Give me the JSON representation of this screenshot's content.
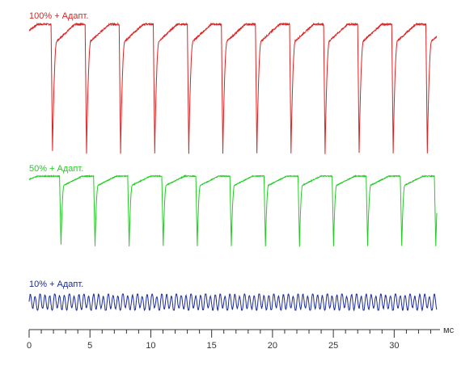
{
  "chart_data": {
    "type": "line",
    "title": "",
    "xlabel": "мс",
    "ylabel": "",
    "xlim": [
      0,
      33.5
    ],
    "x_ticks_labeled": [
      "0",
      "5",
      "10",
      "15",
      "20",
      "25",
      "30"
    ],
    "x_tick_values": [
      0,
      5,
      10,
      15,
      20,
      25,
      30
    ],
    "grid": false,
    "legend": "none",
    "series": [
      {
        "name": "100% + Адапт.",
        "color": "#dd2222",
        "duty_fraction": 1.0,
        "pulse_falls_ms": [
          1.8,
          4.6,
          7.4,
          10.2,
          13.0,
          15.8,
          18.6,
          21.4,
          24.2,
          27.0,
          29.8,
          32.6
        ],
        "level_range": [
          0,
          1
        ]
      },
      {
        "name": "50% + Адапт.",
        "color": "#22cc22",
        "duty_fraction": 0.5,
        "pulse_falls_ms": [
          2.5,
          5.3,
          8.1,
          10.9,
          13.7,
          16.5,
          19.3,
          22.1,
          24.9,
          27.7,
          30.5,
          33.3
        ],
        "level_range": [
          0,
          1
        ]
      },
      {
        "name": "10% + Адапт.",
        "color": "#1a2a99",
        "duty_fraction": 0.1,
        "oscillation_period_ms": 0.4,
        "level_range": [
          0,
          1
        ]
      }
    ]
  }
}
